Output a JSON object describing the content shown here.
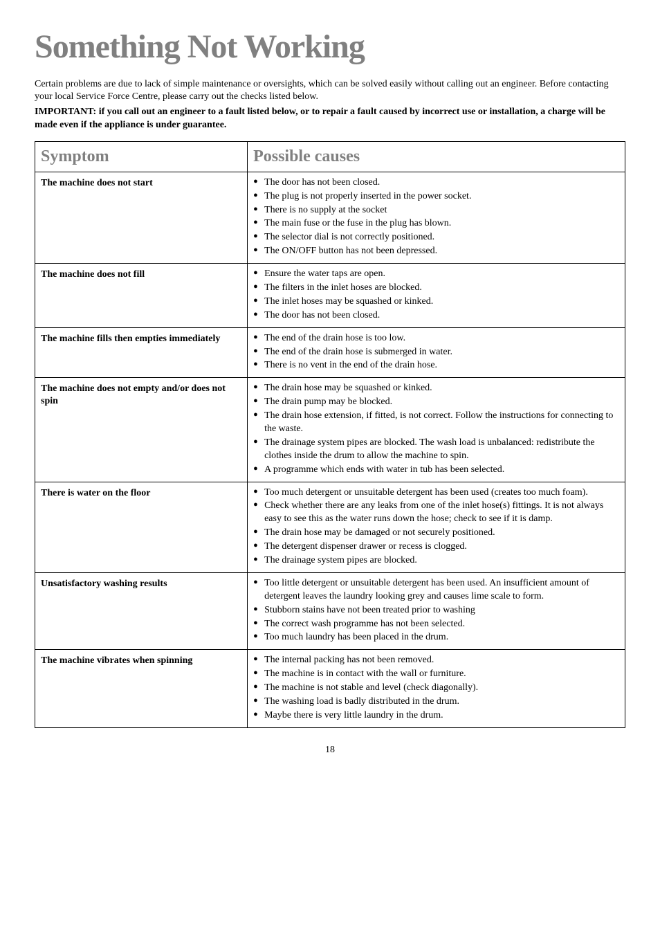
{
  "title": "Something Not Working",
  "intro": "Certain problems are due to lack of simple maintenance or oversights, which can be solved easily without calling out an engineer. Before contacting your local Service Force Centre, please carry out the checks listed below.",
  "intro_bold": "IMPORTANT: if you call out an engineer to a fault listed below, or to repair a fault caused by incorrect use or installation, a charge will be made even if the appliance is under guarantee.",
  "headers": {
    "col1": "Symptom",
    "col2": "Possible causes"
  },
  "rows": [
    {
      "symptom": "The machine does not start",
      "causes": [
        "The door has not been closed.",
        "The plug is not properly inserted in the power socket.",
        "There is no supply at the socket",
        "The main fuse or the fuse in the plug has blown.",
        "The selector dial is not correctly positioned.",
        "The ON/OFF button has not been depressed."
      ]
    },
    {
      "symptom": "The machine does not fill",
      "causes": [
        "Ensure the water taps are open.",
        "The filters in the inlet hoses are blocked.",
        "The inlet hoses may be squashed or kinked.",
        "The door has not been closed."
      ]
    },
    {
      "symptom": "The machine fills then empties immediately",
      "causes": [
        "The end of the drain hose is too low.",
        "The end of the drain hose is submerged in water.",
        "There is no vent in the end of the drain hose."
      ]
    },
    {
      "symptom": "The machine does not empty and/or does not spin",
      "causes": [
        "The drain hose may be squashed or kinked.",
        "The drain pump may be blocked.",
        "The drain hose extension, if fitted, is not correct. Follow the instructions for connecting to the waste.",
        "The drainage system pipes are blocked. The wash load is unbalanced: redistribute the clothes inside the drum to allow the machine to spin.",
        "A programme which ends with water in tub has been selected."
      ]
    },
    {
      "symptom": "There is water on the floor",
      "causes": [
        "Too much detergent or unsuitable detergent has been used (creates too much foam).",
        "Check whether there are any leaks from one of the inlet hose(s) fittings. It is not always easy to see this as the water runs down the hose; check to see if it is damp.",
        "The drain hose may be damaged or not securely positioned.",
        "The detergent dispenser drawer or recess is clogged.",
        "The drainage system pipes are blocked."
      ]
    },
    {
      "symptom": "Unsatisfactory washing results",
      "causes": [
        "Too little detergent or unsuitable detergent has been used. An insufficient amount of detergent leaves the laundry looking grey and causes lime scale to form.",
        "Stubborn stains have not been treated prior to washing",
        "The correct wash programme has not been selected.",
        "Too much laundry has been placed in the drum."
      ]
    },
    {
      "symptom": "The machine vibrates when spinning",
      "causes": [
        "The internal packing has not been removed.",
        "The machine is in contact with the wall or furniture.",
        "The machine is not stable and level (check diagonally).",
        "The washing load is badly distributed in the drum.",
        "Maybe there is very little laundry in the drum."
      ]
    }
  ],
  "page_number": "18"
}
